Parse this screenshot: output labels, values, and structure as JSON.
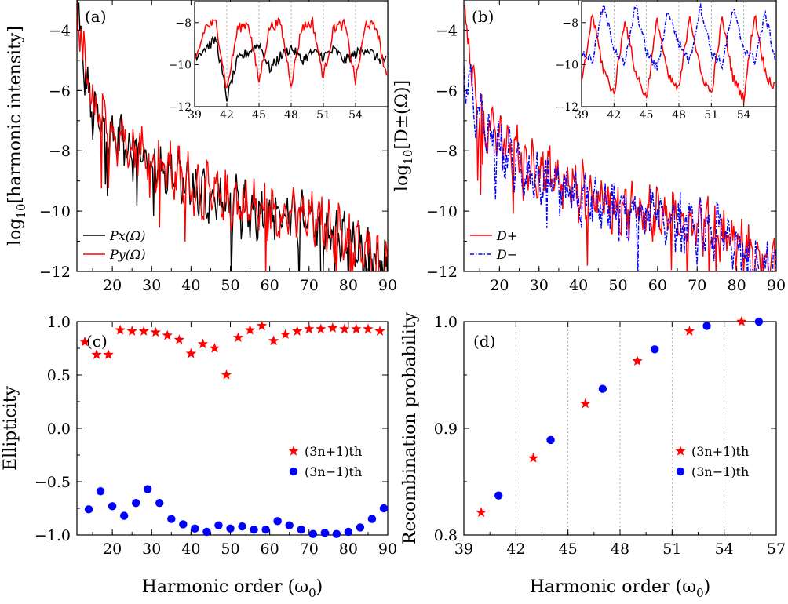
{
  "colors": {
    "black": "#000000",
    "red": "#ff0000",
    "blue": "#0000ff"
  },
  "chart_data": [
    {
      "id": "a",
      "type": "line",
      "panel_label": "(a)",
      "ylabel_prefix": "log",
      "ylabel_sub": "10",
      "ylabel_rest": "[harmonic intensity]",
      "xlim": [
        11,
        90
      ],
      "ylim": [
        -12,
        -3
      ],
      "xticks": [
        20,
        30,
        40,
        50,
        60,
        70,
        80,
        90
      ],
      "yticks": [
        -12,
        -10,
        -8,
        -6,
        -4
      ],
      "legend": {
        "placement": "lower-left",
        "entries": [
          {
            "label": "Px(Ω)",
            "color": "#000000",
            "style": "solid"
          },
          {
            "label": "Py(Ω)",
            "color": "#ff0000",
            "style": "solid"
          }
        ]
      },
      "series": [
        {
          "name": "Px(Ω)",
          "color": "#000000",
          "x": [
            11,
            13,
            15,
            18,
            22,
            26,
            30,
            35,
            40,
            45,
            50,
            55,
            60,
            65,
            70,
            75,
            80,
            85,
            90
          ],
          "y": [
            -3.2,
            -5.5,
            -6.8,
            -7.3,
            -7.6,
            -8.0,
            -8.4,
            -8.8,
            -9.2,
            -9.6,
            -9.8,
            -10.0,
            -10.0,
            -10.2,
            -10.4,
            -10.6,
            -11.0,
            -11.6,
            -12.0
          ]
        },
        {
          "name": "Py(Ω)",
          "color": "#ff0000",
          "x": [
            11,
            13,
            15,
            18,
            22,
            26,
            30,
            35,
            40,
            45,
            50,
            55,
            60,
            65,
            70,
            75,
            80,
            85,
            90
          ],
          "y": [
            -3.0,
            -5.3,
            -6.6,
            -7.2,
            -7.5,
            -7.9,
            -8.3,
            -8.7,
            -9.1,
            -9.5,
            -9.7,
            -9.9,
            -10.0,
            -10.1,
            -10.3,
            -10.5,
            -10.9,
            -11.5,
            -12.0
          ]
        }
      ],
      "inset": {
        "xlim": [
          39,
          57
        ],
        "ylim": [
          -12,
          -7
        ],
        "xticks": [
          39,
          42,
          45,
          48,
          51,
          54
        ],
        "yticks": [
          -12,
          -10,
          -8
        ],
        "grid_x": [
          42,
          45,
          48,
          51,
          54
        ],
        "series": [
          {
            "name": "Px(Ω)",
            "color": "#000000",
            "x": [
              39,
              40,
              41,
              42,
              43,
              44,
              45,
              46,
              47,
              48,
              49,
              50,
              51,
              52,
              53,
              54,
              55,
              56,
              57
            ],
            "y": [
              -9.6,
              -9.2,
              -8.8,
              -11.6,
              -9.8,
              -9.4,
              -9.0,
              -10.2,
              -9.6,
              -9.2,
              -9.8,
              -9.4,
              -9.6,
              -9.3,
              -9.8,
              -9.5,
              -9.2,
              -9.7,
              -9.8
            ]
          },
          {
            "name": "Py(Ω)",
            "color": "#ff0000",
            "x": [
              39,
              40,
              41,
              42,
              43,
              44,
              45,
              46,
              47,
              48,
              49,
              50,
              51,
              52,
              53,
              54,
              55,
              56,
              57
            ],
            "y": [
              -10.0,
              -8.2,
              -8.0,
              -11.2,
              -8.3,
              -8.0,
              -10.8,
              -8.2,
              -8.0,
              -10.9,
              -8.2,
              -8.0,
              -10.6,
              -8.2,
              -8.1,
              -10.8,
              -8.0,
              -8.3,
              -11.0
            ]
          }
        ]
      }
    },
    {
      "id": "b",
      "type": "line",
      "panel_label": "(b)",
      "ylabel_prefix": "log",
      "ylabel_sub": "10",
      "ylabel_rest": "[D±(Ω)]",
      "xlim": [
        11,
        90
      ],
      "ylim": [
        -12,
        -3
      ],
      "xticks": [
        20,
        30,
        40,
        50,
        60,
        70,
        80,
        90
      ],
      "yticks": [
        -12,
        -10,
        -8,
        -6,
        -4
      ],
      "legend": {
        "placement": "lower-left",
        "entries": [
          {
            "label": "D+",
            "color": "#ff0000",
            "style": "solid"
          },
          {
            "label": "D−",
            "color": "#0000ff",
            "style": "dashdot"
          }
        ]
      },
      "series": [
        {
          "name": "D+",
          "color": "#ff0000",
          "x": [
            11,
            13,
            15,
            18,
            22,
            26,
            30,
            35,
            40,
            45,
            50,
            55,
            60,
            65,
            70,
            75,
            80,
            85,
            90
          ],
          "y": [
            -3.0,
            -5.5,
            -6.8,
            -7.4,
            -7.8,
            -8.2,
            -8.6,
            -9.0,
            -9.3,
            -9.6,
            -9.8,
            -10.0,
            -10.1,
            -10.2,
            -10.4,
            -10.6,
            -11.0,
            -11.5,
            -12.0
          ]
        },
        {
          "name": "D−",
          "color": "#0000ff",
          "x": [
            11,
            13,
            15,
            18,
            22,
            26,
            30,
            35,
            40,
            45,
            50,
            55,
            60,
            65,
            70,
            75,
            80,
            85,
            90
          ],
          "y": [
            -5.6,
            -6.2,
            -7.0,
            -7.6,
            -8.2,
            -8.6,
            -9.0,
            -9.4,
            -9.6,
            -9.8,
            -10.0,
            -10.1,
            -10.2,
            -10.3,
            -10.5,
            -10.7,
            -11.1,
            -11.6,
            -12.0
          ]
        }
      ],
      "inset": {
        "xlim": [
          39,
          57
        ],
        "ylim": [
          -12,
          -7
        ],
        "xticks": [
          39,
          42,
          45,
          48,
          51,
          54
        ],
        "yticks": [
          -12,
          -10,
          -8
        ],
        "grid_x": [
          42,
          45,
          48,
          51,
          54
        ],
        "series": [
          {
            "name": "D+",
            "color": "#ff0000",
            "x": [
              39,
              40,
              41,
              42,
              43,
              44,
              45,
              46,
              47,
              48,
              49,
              50,
              51,
              52,
              53,
              54,
              55,
              56,
              57
            ],
            "y": [
              -11.0,
              -7.6,
              -10.2,
              -11.4,
              -7.8,
              -10.4,
              -11.6,
              -7.8,
              -10.6,
              -11.2,
              -7.6,
              -10.4,
              -11.4,
              -7.8,
              -10.6,
              -11.6,
              -7.6,
              -10.4,
              -11.2
            ]
          },
          {
            "name": "D−",
            "color": "#0000ff",
            "x": [
              39,
              40,
              41,
              42,
              43,
              44,
              45,
              46,
              47,
              48,
              49,
              50,
              51,
              52,
              53,
              54,
              55,
              56,
              57
            ],
            "y": [
              -9.4,
              -9.8,
              -7.2,
              -9.2,
              -10.0,
              -7.2,
              -9.4,
              -10.2,
              -7.4,
              -9.0,
              -9.8,
              -7.2,
              -9.4,
              -10.0,
              -7.4,
              -9.2,
              -9.8,
              -7.6,
              -10.0
            ]
          }
        ]
      }
    },
    {
      "id": "c",
      "type": "scatter",
      "panel_label": "(c)",
      "ylabel": "Ellipticity",
      "xlabel_prefix": "Harmonic order (ω",
      "xlabel_sub": "0",
      "xlabel_suffix": ")",
      "xlim": [
        11,
        90
      ],
      "ylim": [
        -1.0,
        1.0
      ],
      "xticks": [
        20,
        30,
        40,
        50,
        60,
        70,
        80,
        90
      ],
      "yticks": [
        -1.0,
        -0.5,
        0.0,
        0.5,
        1.0
      ],
      "ytick_labels": [
        "−1.0",
        "−0.5",
        "0.0",
        "0.5",
        "1.0"
      ],
      "legend": {
        "placement": "right",
        "entries": [
          {
            "label": "(3n+1)th",
            "color": "#ff0000",
            "marker": "star"
          },
          {
            "label": "(3n−1)th",
            "color": "#0000ff",
            "marker": "circle"
          }
        ]
      },
      "series": [
        {
          "name": "(3n+1)th",
          "color": "#ff0000",
          "marker": "star",
          "x": [
            13,
            16,
            19,
            22,
            25,
            28,
            31,
            34,
            37,
            40,
            43,
            46,
            49,
            52,
            55,
            58,
            61,
            64,
            67,
            70,
            73,
            76,
            79,
            82,
            85,
            88
          ],
          "y": [
            0.81,
            0.69,
            0.69,
            0.92,
            0.91,
            0.91,
            0.9,
            0.87,
            0.83,
            0.7,
            0.79,
            0.75,
            0.5,
            0.85,
            0.92,
            0.96,
            0.82,
            0.88,
            0.91,
            0.93,
            0.93,
            0.94,
            0.93,
            0.93,
            0.93,
            0.91
          ]
        },
        {
          "name": "(3n−1)th",
          "color": "#0000ff",
          "marker": "circle",
          "x": [
            14,
            17,
            20,
            23,
            26,
            29,
            32,
            35,
            38,
            41,
            44,
            47,
            50,
            53,
            56,
            59,
            62,
            65,
            68,
            71,
            74,
            77,
            80,
            83,
            86,
            89
          ],
          "y": [
            -0.76,
            -0.59,
            -0.73,
            -0.82,
            -0.7,
            -0.57,
            -0.7,
            -0.85,
            -0.9,
            -0.94,
            -0.97,
            -0.91,
            -0.94,
            -0.92,
            -0.95,
            -0.95,
            -0.87,
            -0.91,
            -0.95,
            -0.99,
            -0.98,
            -0.99,
            -0.97,
            -0.93,
            -0.85,
            -0.75
          ]
        }
      ]
    },
    {
      "id": "d",
      "type": "scatter",
      "panel_label": "(d)",
      "ylabel": "Recombination probability",
      "xlabel_prefix": "Harmonic order (ω",
      "xlabel_sub": "0",
      "xlabel_suffix": ")",
      "xlim": [
        39,
        57
      ],
      "ylim": [
        0.8,
        1.0
      ],
      "xticks": [
        39,
        42,
        45,
        48,
        51,
        54,
        57
      ],
      "yticks": [
        0.8,
        0.9,
        1.0
      ],
      "ytick_labels": [
        "0.8",
        "0.9",
        "1.0"
      ],
      "grid_x": [
        42,
        45,
        48,
        51,
        54
      ],
      "legend": {
        "placement": "lower-right",
        "entries": [
          {
            "label": "(3n+1)th",
            "color": "#ff0000",
            "marker": "star"
          },
          {
            "label": "(3n−1)th",
            "color": "#0000ff",
            "marker": "circle"
          }
        ]
      },
      "series": [
        {
          "name": "(3n+1)th",
          "color": "#ff0000",
          "marker": "star",
          "x": [
            40,
            43,
            46,
            49,
            52,
            55
          ],
          "y": [
            0.821,
            0.872,
            0.923,
            0.963,
            0.991,
            1.0
          ]
        },
        {
          "name": "(3n−1)th",
          "color": "#0000ff",
          "marker": "circle",
          "x": [
            41,
            44,
            47,
            50,
            53,
            56
          ],
          "y": [
            0.837,
            0.889,
            0.937,
            0.974,
            0.996,
            1.0
          ]
        }
      ]
    }
  ]
}
